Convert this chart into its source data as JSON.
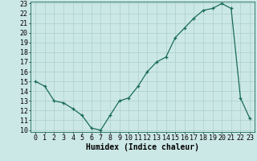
{
  "x": [
    0,
    1,
    2,
    3,
    4,
    5,
    6,
    7,
    8,
    9,
    10,
    11,
    12,
    13,
    14,
    15,
    16,
    17,
    18,
    19,
    20,
    21,
    22,
    23
  ],
  "y": [
    15,
    14.5,
    13,
    12.8,
    12.2,
    11.5,
    10.2,
    10,
    11.5,
    13,
    13.3,
    14.5,
    16,
    17,
    17.5,
    19.5,
    20.5,
    21.5,
    22.3,
    22.5,
    23,
    22.5,
    13.3,
    11.2
  ],
  "xlabel": "Humidex (Indice chaleur)",
  "ylim": [
    10,
    23
  ],
  "xlim": [
    -0.5,
    23.5
  ],
  "bg_color": "#cce8e6",
  "grid_color": "#aacfcc",
  "line_color": "#1a6b5a",
  "marker": "+",
  "yticks": [
    10,
    11,
    12,
    13,
    14,
    15,
    16,
    17,
    18,
    19,
    20,
    21,
    22,
    23
  ],
  "xticks": [
    0,
    1,
    2,
    3,
    4,
    5,
    6,
    7,
    8,
    9,
    10,
    11,
    12,
    13,
    14,
    15,
    16,
    17,
    18,
    19,
    20,
    21,
    22,
    23
  ],
  "xlabel_fontsize": 7,
  "tick_fontsize": 6
}
